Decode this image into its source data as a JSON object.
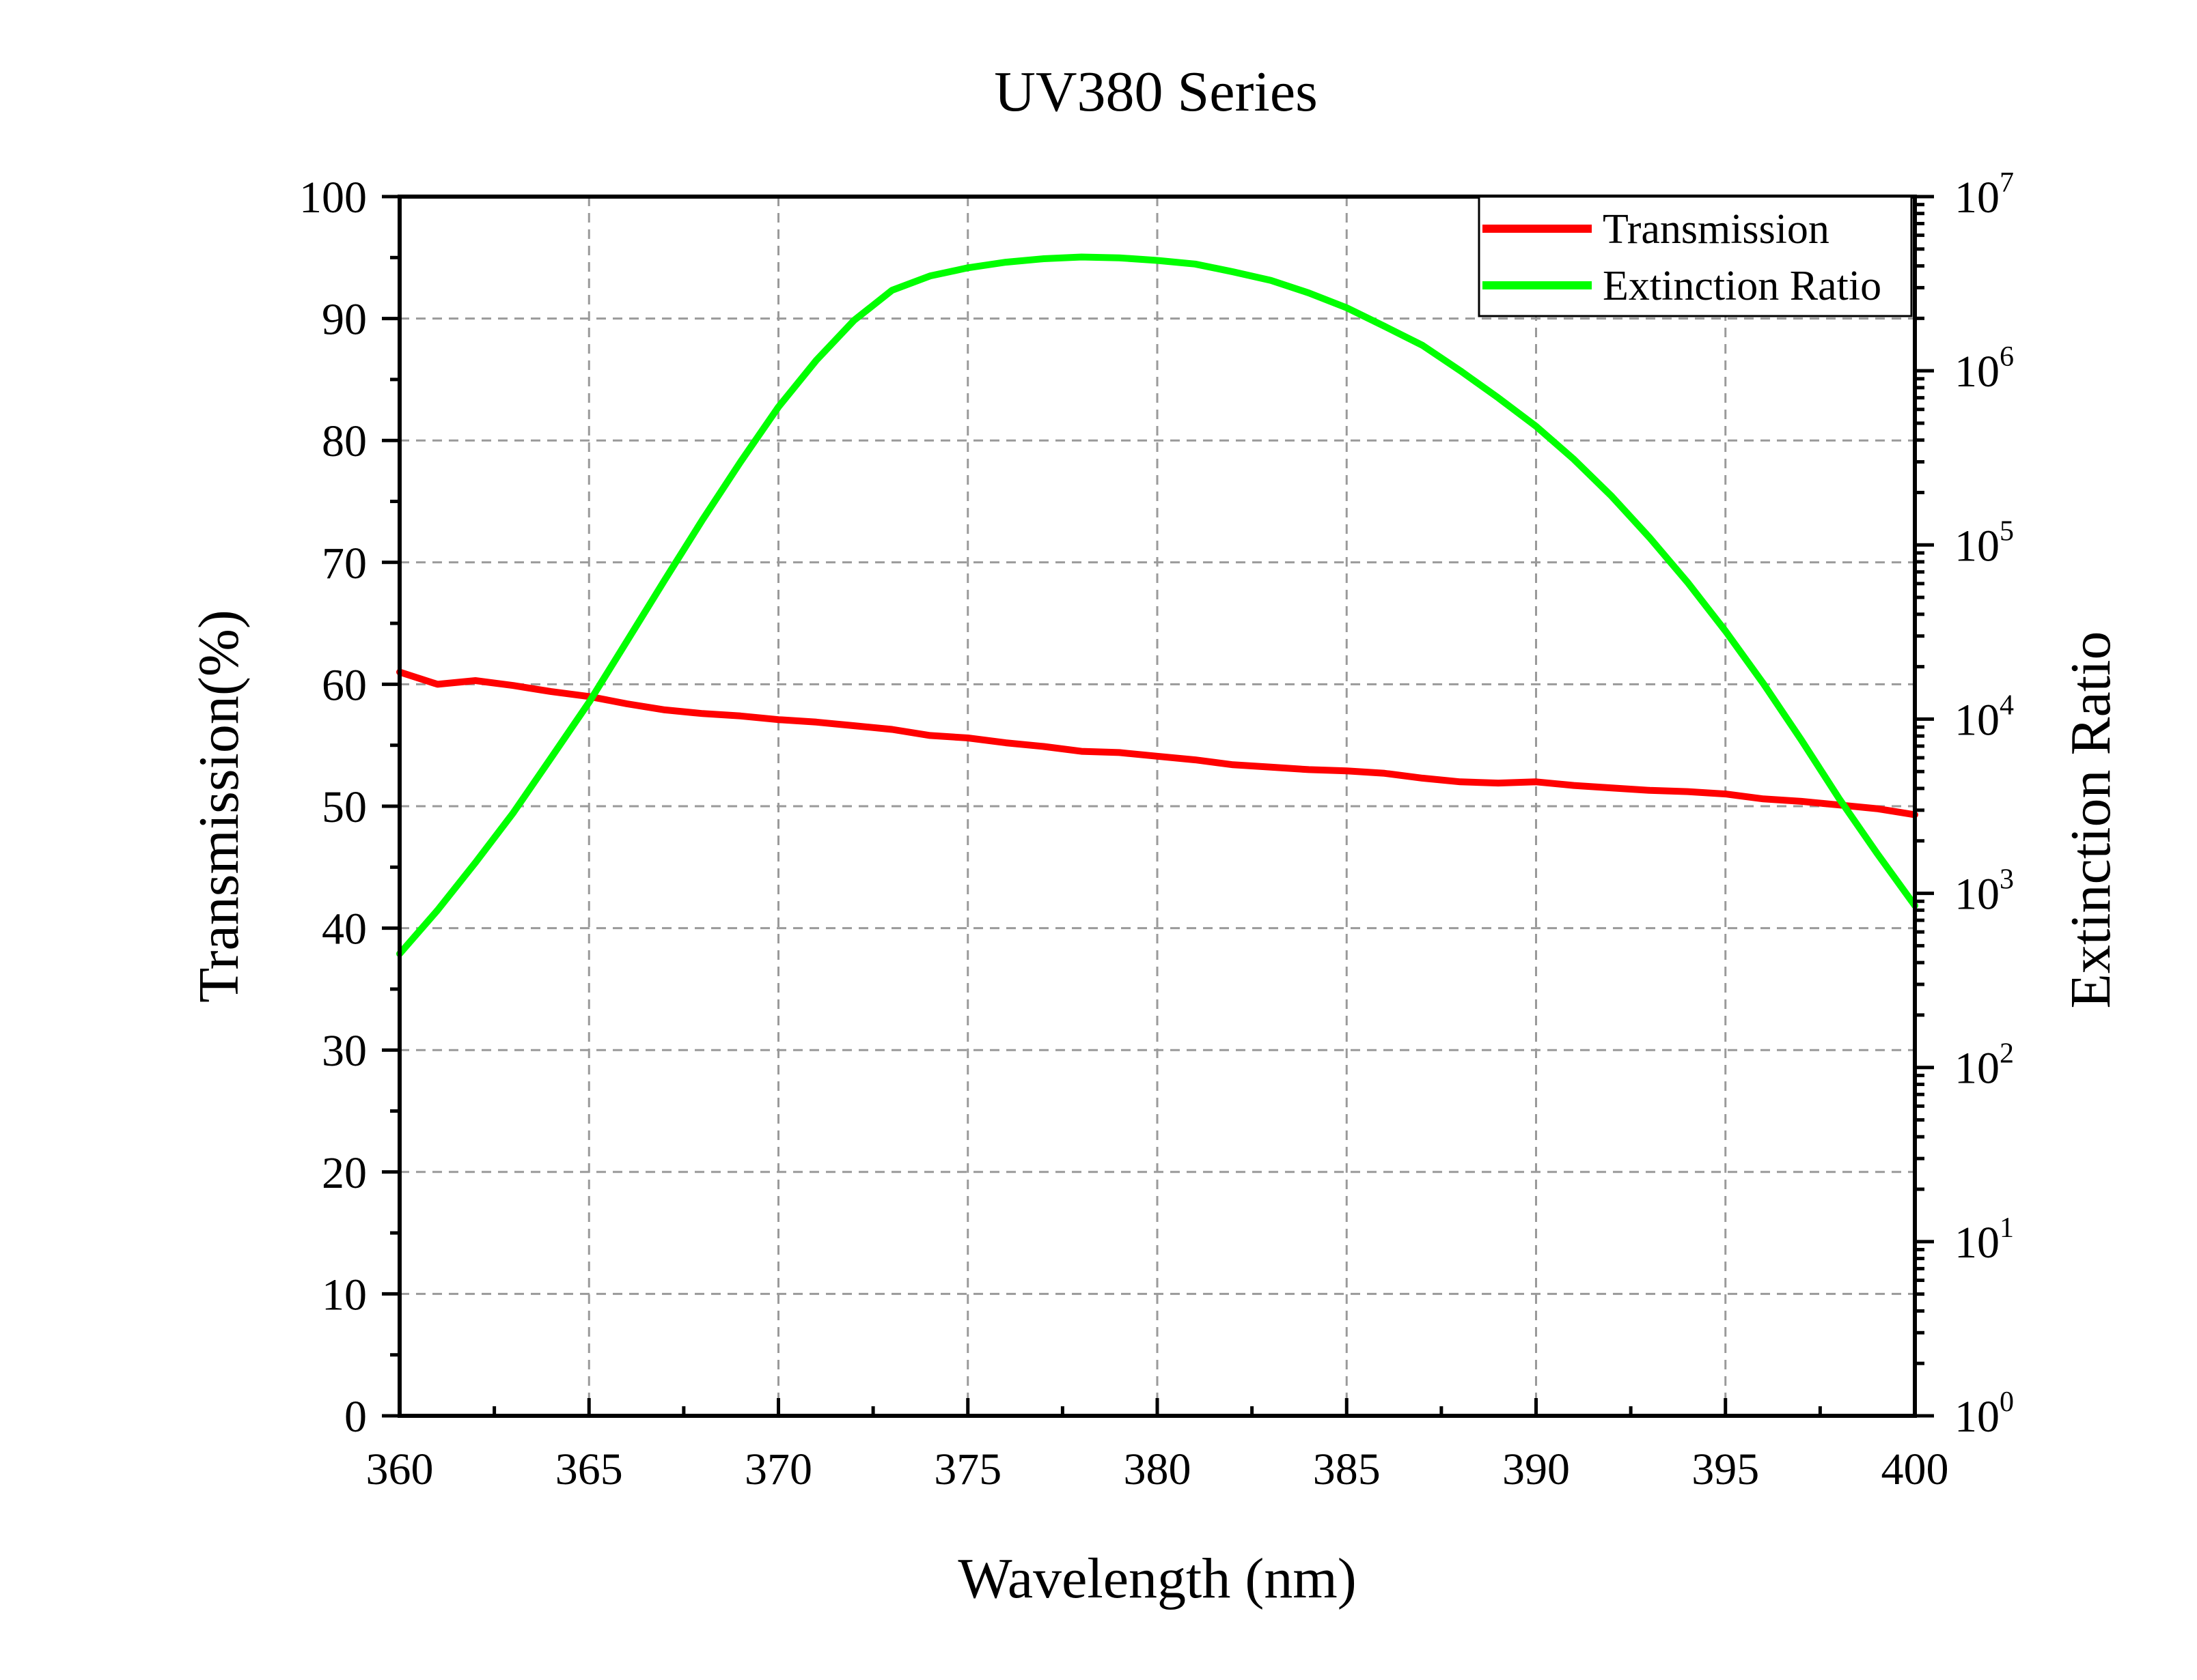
{
  "chart_data": {
    "type": "line",
    "title": "UV380 Series",
    "xlabel": "Wavelength (nm)",
    "ylabel_left": "Transmission(%)",
    "ylabel_right": "Extinction Ratio",
    "xlim": [
      360,
      400
    ],
    "ylim_left": [
      0,
      100
    ],
    "ylim_right": [
      1,
      10000000
    ],
    "right_scale": "log",
    "grid": true,
    "legend_position": "top-right",
    "x_ticks": [
      "360",
      "365",
      "370",
      "375",
      "380",
      "385",
      "390",
      "395",
      "400"
    ],
    "y_ticks_left": [
      "0",
      "10",
      "20",
      "30",
      "40",
      "50",
      "60",
      "70",
      "80",
      "90",
      "100"
    ],
    "y_ticks_right": [
      {
        "base": "10",
        "exp": "0"
      },
      {
        "base": "10",
        "exp": "1"
      },
      {
        "base": "10",
        "exp": "2"
      },
      {
        "base": "10",
        "exp": "3"
      },
      {
        "base": "10",
        "exp": "4"
      },
      {
        "base": "10",
        "exp": "5"
      },
      {
        "base": "10",
        "exp": "6"
      },
      {
        "base": "10",
        "exp": "7"
      }
    ],
    "series": [
      {
        "name": "Transmission",
        "axis": "left",
        "color": "#ff0000",
        "x": [
          360,
          361,
          362,
          363,
          364,
          365,
          366,
          367,
          368,
          369,
          370,
          371,
          372,
          373,
          374,
          375,
          376,
          377,
          378,
          379,
          380,
          381,
          382,
          383,
          384,
          385,
          386,
          387,
          388,
          389,
          390,
          391,
          392,
          393,
          394,
          395,
          396,
          397,
          398,
          399,
          400
        ],
        "y": [
          61.0,
          60.0,
          60.3,
          59.9,
          59.4,
          59.0,
          58.4,
          57.9,
          57.6,
          57.4,
          57.1,
          56.9,
          56.6,
          56.3,
          55.8,
          55.6,
          55.2,
          54.9,
          54.5,
          54.4,
          54.1,
          53.8,
          53.4,
          53.2,
          53.0,
          52.9,
          52.7,
          52.3,
          52.0,
          51.9,
          52.0,
          51.7,
          51.5,
          51.3,
          51.2,
          51.0,
          50.6,
          50.4,
          50.1,
          49.8,
          49.3
        ]
      },
      {
        "name": "Extinction Ratio",
        "axis": "right",
        "color": "#00ff00",
        "x": [
          360,
          361,
          362,
          363,
          364,
          365,
          366,
          367,
          368,
          369,
          370,
          371,
          372,
          373,
          374,
          375,
          376,
          377,
          378,
          379,
          380,
          381,
          382,
          383,
          384,
          385,
          386,
          387,
          388,
          389,
          390,
          391,
          392,
          393,
          394,
          395,
          396,
          397,
          398,
          399,
          400
        ],
        "y": [
          450,
          800,
          1500,
          2900,
          6000,
          12500,
          28000,
          63000,
          140000,
          300000,
          620000,
          1150000,
          1950000,
          2900000,
          3500000,
          3900000,
          4200000,
          4400000,
          4500000,
          4450000,
          4300000,
          4100000,
          3700000,
          3300000,
          2800000,
          2300000,
          1800000,
          1400000,
          1000000,
          700000,
          480000,
          310000,
          190000,
          110000,
          61000,
          32000,
          16000,
          7600,
          3500,
          1700,
          850
        ]
      }
    ]
  }
}
